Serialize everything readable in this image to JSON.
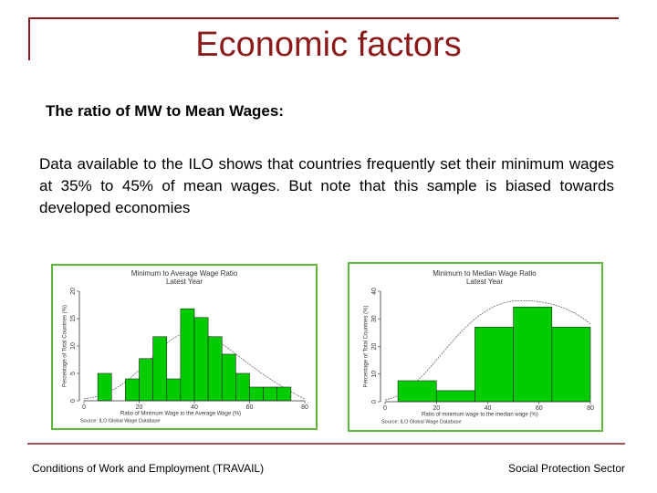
{
  "title": "Economic factors",
  "heading": "The ratio of MW to Mean Wages:",
  "paragraph": "Data available to the ILO shows that countries frequently set their minimum wages at 35% to 45% of mean wages. But note that this sample is biased towards developed economies",
  "footer": {
    "left": "Conditions of Work and Employment (TRAVAIL)",
    "right": "Social Protection Sector"
  },
  "chart_data": [
    {
      "type": "histogram",
      "title": "Minimum to Average Wage Ratio",
      "subtitle": "Latest Year",
      "x_label": "Ratio of Minimum Wage to the Average Wage (%)",
      "y_label": "Percentage of Total Countries (%)",
      "source": "Source: ILO Global Wage Database",
      "color": "#00cc00",
      "bins": [
        5,
        10,
        15,
        20,
        25,
        30,
        35,
        40,
        45,
        50,
        55,
        60,
        65,
        70,
        75
      ],
      "values": [
        5,
        0,
        4,
        7.7,
        11.7,
        4,
        16.8,
        15.2,
        11.7,
        8.5,
        5,
        2.5,
        2.5,
        2.5
      ],
      "xlim": [
        0,
        80
      ],
      "xticks": [
        0,
        20,
        40,
        60,
        80
      ],
      "ylim": [
        0,
        20
      ],
      "yticks": [
        0,
        5,
        10,
        15,
        20
      ]
    },
    {
      "type": "histogram",
      "title": "Minimum to Median Wage Ratio",
      "subtitle": "Latest Year",
      "x_label": "Ratio of minimum wage to the median wage (%)",
      "y_label": "Percentage of Total Countries (%)",
      "source": "Source: ILO Global Wage Database",
      "color": "#00cc00",
      "bins": [
        5,
        20,
        35,
        50,
        65,
        80
      ],
      "values": [
        7.6,
        4,
        27,
        34.3,
        27
      ],
      "xlim": [
        0,
        80
      ],
      "xticks": [
        0,
        20,
        40,
        60,
        80
      ],
      "ylim": [
        0,
        40
      ],
      "yticks": [
        0,
        10,
        20,
        30,
        40
      ]
    }
  ]
}
